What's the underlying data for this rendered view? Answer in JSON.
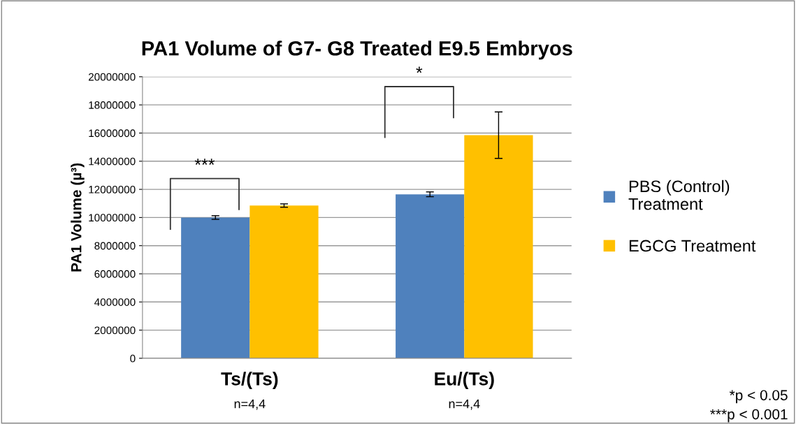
{
  "chart_data": {
    "type": "bar",
    "title": "PA1 Volume of G7- G8 Treated E9.5 Embryos",
    "ylabel": "PA1 Volume (µ³)",
    "categories": [
      "Ts/(Ts)",
      "Eu/(Ts)"
    ],
    "series": [
      {
        "name": "PBS (Control)\nTreatment",
        "color": "#4f81bd",
        "values": [
          10000000,
          11650000
        ],
        "errors": [
          130000,
          170000
        ]
      },
      {
        "name": "EGCG Treatment",
        "color": "#ffc000",
        "values": [
          10850000,
          15850000
        ],
        "errors": [
          120000,
          1650000
        ]
      }
    ],
    "ylim": [
      0,
      20000000
    ],
    "yticks": [
      0,
      2000000,
      4000000,
      6000000,
      8000000,
      10000000,
      12000000,
      14000000,
      16000000,
      18000000,
      20000000
    ],
    "grid": "y",
    "legend": "right",
    "annotations": [
      "***",
      "*",
      "n=4,4",
      "n=4,4",
      "*p < 0.05",
      "***p < 0.001"
    ]
  }
}
